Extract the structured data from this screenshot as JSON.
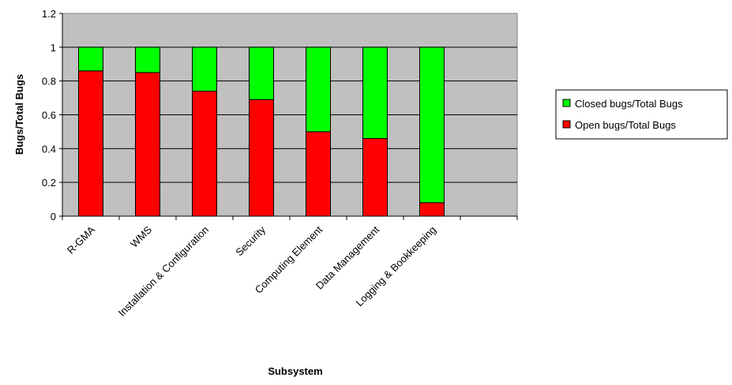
{
  "chart_data": {
    "type": "bar",
    "stacked": true,
    "categories": [
      "R-GMA",
      "WMS",
      "Installation & Configuration",
      "Security",
      "Computing Element",
      "Data Management",
      "Logging & Bookkeeping",
      ""
    ],
    "series": [
      {
        "name": "Open bugs/Total Bugs",
        "color": "#ff0000",
        "values": [
          0.86,
          0.85,
          0.74,
          0.69,
          0.5,
          0.46,
          0.08,
          null
        ]
      },
      {
        "name": "Closed bugs/Total Bugs",
        "color": "#00ff00",
        "values": [
          0.14,
          0.15,
          0.26,
          0.31,
          0.5,
          0.54,
          0.92,
          null
        ]
      }
    ],
    "legend_order": [
      "Closed bugs/Total Bugs",
      "Open bugs/Total Bugs"
    ],
    "xlabel": "Subsystem",
    "ylabel": "Bugs/Total Bugs",
    "ylim": [
      0,
      1.2
    ],
    "yticks": [
      "0",
      "0.2",
      "0.4",
      "0.6",
      "0.8",
      "1",
      "1.2"
    ],
    "grid": true,
    "plot_background": "#c0c0c0",
    "legend_position": "right"
  }
}
